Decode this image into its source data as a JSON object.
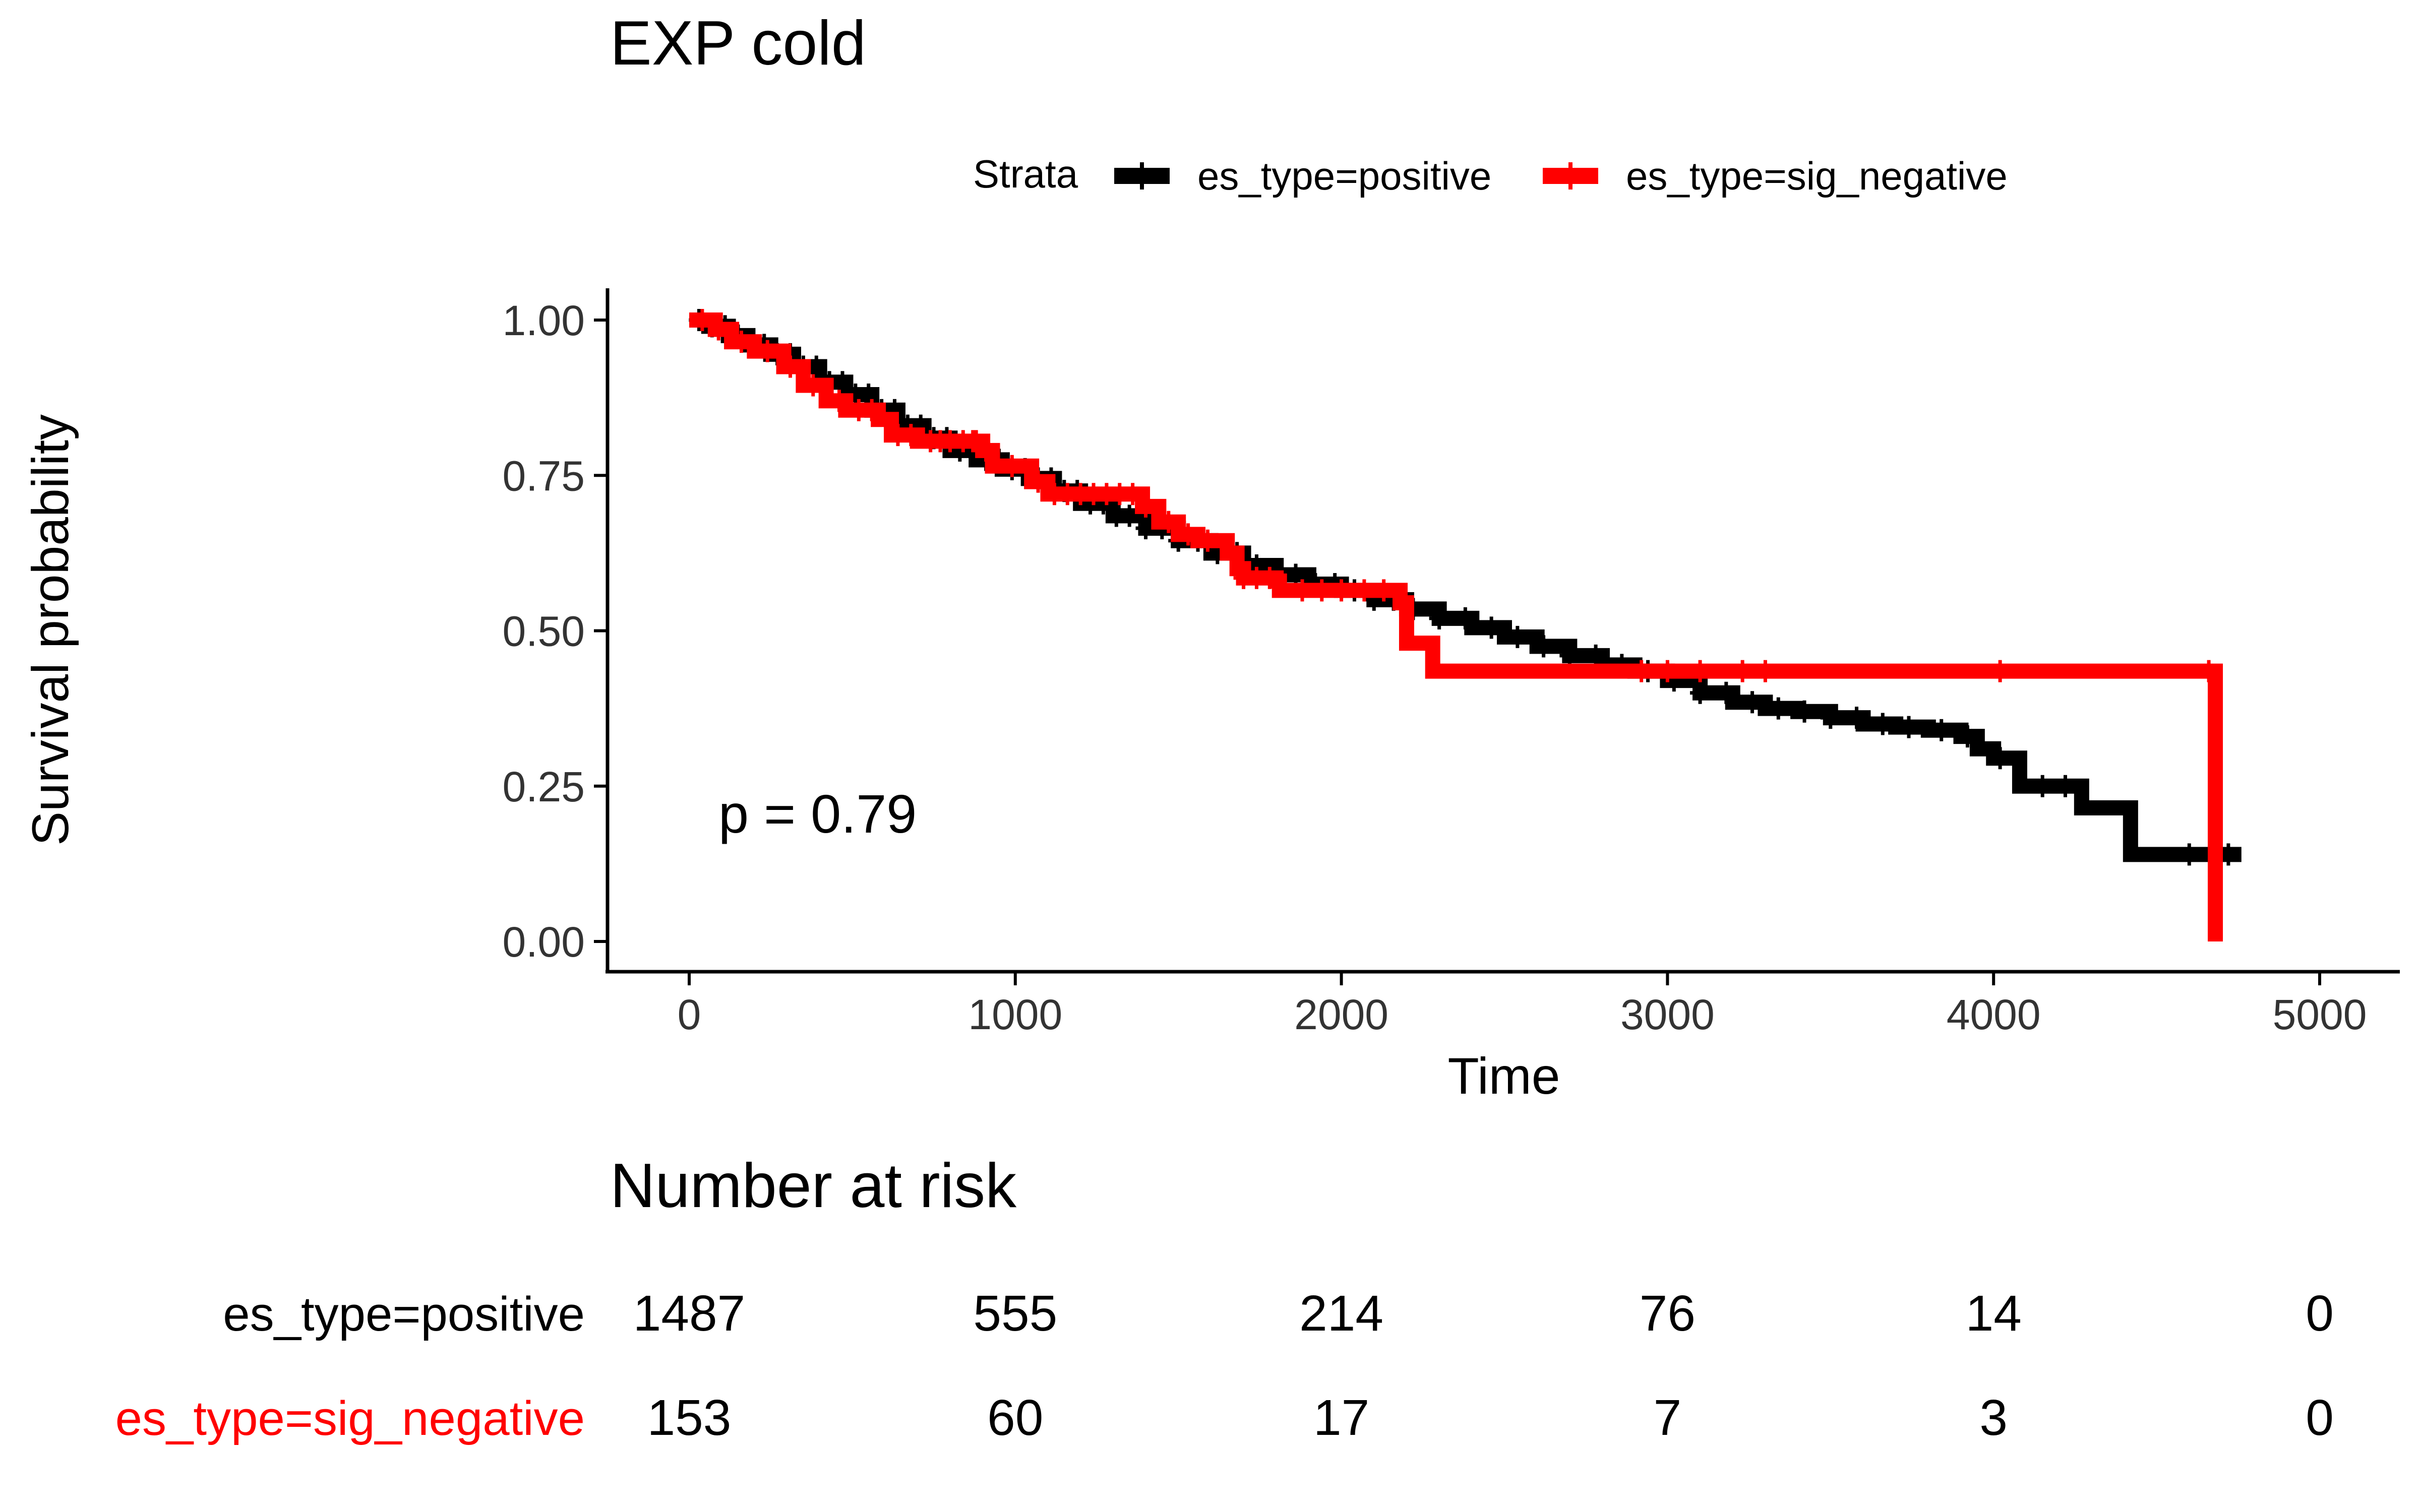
{
  "chart_data": {
    "type": "line",
    "subtype": "kaplan-meier",
    "title": "EXP cold",
    "xlabel": "Time",
    "ylabel": "Survival probability",
    "xlim": [
      -250,
      5250
    ],
    "ylim": [
      -0.05,
      1.05
    ],
    "xticks": [
      0,
      1000,
      2000,
      3000,
      4000,
      5000
    ],
    "yticks": [
      "0.00",
      "0.25",
      "0.50",
      "0.75",
      "1.00"
    ],
    "grid": false,
    "legend": {
      "title": "Strata",
      "position": "top",
      "entries": [
        "es_type=positive",
        "es_type=sig_negative"
      ]
    },
    "annotation": "p = 0.79",
    "series": [
      {
        "name": "es_type=positive",
        "color": "#000000",
        "step": [
          [
            0,
            1.0
          ],
          [
            60,
            0.99
          ],
          [
            120,
            0.975
          ],
          [
            180,
            0.96
          ],
          [
            250,
            0.945
          ],
          [
            320,
            0.925
          ],
          [
            400,
            0.9
          ],
          [
            480,
            0.88
          ],
          [
            560,
            0.855
          ],
          [
            640,
            0.83
          ],
          [
            720,
            0.81
          ],
          [
            800,
            0.79
          ],
          [
            880,
            0.775
          ],
          [
            960,
            0.76
          ],
          [
            1040,
            0.745
          ],
          [
            1120,
            0.725
          ],
          [
            1200,
            0.705
          ],
          [
            1300,
            0.685
          ],
          [
            1400,
            0.665
          ],
          [
            1500,
            0.645
          ],
          [
            1600,
            0.625
          ],
          [
            1700,
            0.605
          ],
          [
            1800,
            0.59
          ],
          [
            1900,
            0.575
          ],
          [
            2000,
            0.565
          ],
          [
            2100,
            0.55
          ],
          [
            2200,
            0.535
          ],
          [
            2300,
            0.52
          ],
          [
            2400,
            0.505
          ],
          [
            2500,
            0.49
          ],
          [
            2600,
            0.475
          ],
          [
            2700,
            0.46
          ],
          [
            2800,
            0.445
          ],
          [
            2900,
            0.435
          ],
          [
            3000,
            0.42
          ],
          [
            3100,
            0.4
          ],
          [
            3200,
            0.385
          ],
          [
            3300,
            0.375
          ],
          [
            3400,
            0.37
          ],
          [
            3500,
            0.36
          ],
          [
            3600,
            0.35
          ],
          [
            3700,
            0.345
          ],
          [
            3800,
            0.34
          ],
          [
            3900,
            0.33
          ],
          [
            3950,
            0.31
          ],
          [
            4000,
            0.295
          ],
          [
            4080,
            0.25
          ],
          [
            4270,
            0.215
          ],
          [
            4420,
            0.14
          ],
          [
            4760,
            0.14
          ]
        ],
        "censor_times": [
          30,
          70,
          110,
          150,
          190,
          230,
          270,
          310,
          350,
          390,
          430,
          470,
          510,
          550,
          590,
          630,
          670,
          710,
          750,
          790,
          830,
          870,
          910,
          950,
          990,
          1030,
          1070,
          1110,
          1150,
          1190,
          1230,
          1270,
          1310,
          1350,
          1400,
          1450,
          1500,
          1560,
          1620,
          1680,
          1740,
          1800,
          1860,
          1920,
          1980,
          2040,
          2100,
          2160,
          2220,
          2300,
          2380,
          2460,
          2540,
          2620,
          2700,
          2780,
          2860,
          2940,
          3020,
          3100,
          3180,
          3260,
          3340,
          3420,
          3500,
          3580,
          3660,
          3740,
          3840,
          3920,
          4020,
          4150,
          4220,
          4600,
          4690,
          4720
        ]
      },
      {
        "name": "es_type=sig_negative",
        "color": "#ff0000",
        "step": [
          [
            0,
            1.0
          ],
          [
            80,
            0.985
          ],
          [
            130,
            0.965
          ],
          [
            200,
            0.95
          ],
          [
            290,
            0.925
          ],
          [
            350,
            0.895
          ],
          [
            420,
            0.87
          ],
          [
            480,
            0.855
          ],
          [
            580,
            0.84
          ],
          [
            620,
            0.815
          ],
          [
            700,
            0.805
          ],
          [
            900,
            0.79
          ],
          [
            930,
            0.765
          ],
          [
            1050,
            0.74
          ],
          [
            1100,
            0.72
          ],
          [
            1390,
            0.7
          ],
          [
            1440,
            0.675
          ],
          [
            1500,
            0.655
          ],
          [
            1560,
            0.645
          ],
          [
            1650,
            0.625
          ],
          [
            1680,
            0.6
          ],
          [
            1700,
            0.585
          ],
          [
            1800,
            0.58
          ],
          [
            1810,
            0.565
          ],
          [
            2180,
            0.545
          ],
          [
            2200,
            0.48
          ],
          [
            2280,
            0.435
          ],
          [
            4670,
            0.435
          ],
          [
            4680,
            0.0
          ]
        ],
        "censor_times": [
          40,
          90,
          160,
          240,
          310,
          380,
          460,
          520,
          560,
          640,
          680,
          740,
          770,
          800,
          840,
          870,
          880,
          910,
          990,
          1070,
          1120,
          1160,
          1200,
          1240,
          1280,
          1320,
          1360,
          1400,
          1470,
          1530,
          1590,
          1700,
          1740,
          1780,
          1880,
          1940,
          2000,
          2070,
          2130,
          2190,
          2920,
          3000,
          3100,
          3230,
          3300,
          4020,
          4660
        ]
      }
    ],
    "risk_table": {
      "title": "Number at risk",
      "times": [
        0,
        1000,
        2000,
        3000,
        4000,
        5000
      ],
      "rows": [
        {
          "label": "es_type=positive",
          "color": "#000000",
          "counts": [
            "1487",
            "555",
            "214",
            "76",
            "14",
            "0"
          ]
        },
        {
          "label": "es_type=sig_negative",
          "color": "#ff0000",
          "counts": [
            "153",
            "60",
            "17",
            "7",
            "3",
            "0"
          ]
        }
      ]
    }
  }
}
